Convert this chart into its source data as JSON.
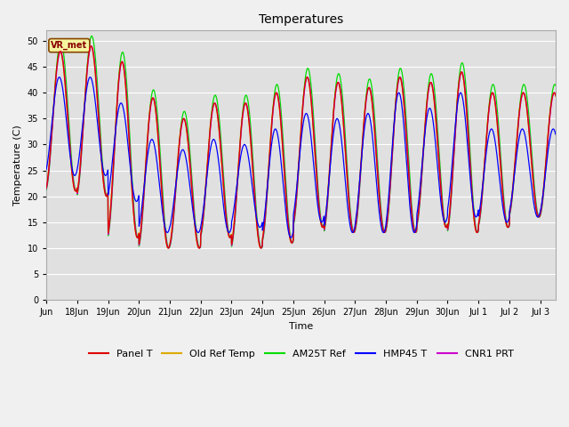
{
  "title": "Temperatures",
  "xlabel": "Time",
  "ylabel": "Temperature (C)",
  "ylim": [
    0,
    52
  ],
  "yticks": [
    0,
    5,
    10,
    15,
    20,
    25,
    30,
    35,
    40,
    45,
    50
  ],
  "series_colors": {
    "Panel T": "#dd0000",
    "Old Ref Temp": "#ddaa00",
    "AM25T Ref": "#00dd00",
    "HMP45 T": "#0000ff",
    "CNR1 PRT": "#cc00cc"
  },
  "tick_labels": [
    "Jun",
    "18Jun",
    "19Jun",
    "20Jun",
    "21Jun",
    "22Jun",
    "23Jun",
    "24Jun",
    "25Jun",
    "26Jun",
    "27Jun",
    "28Jun",
    "29Jun",
    "30Jun",
    "Jul 1",
    "Jul 2",
    "Jul 3"
  ],
  "tick_positions": [
    17,
    18,
    19,
    20,
    21,
    22,
    23,
    24,
    25,
    26,
    27,
    28,
    29,
    30,
    31,
    32,
    33
  ],
  "xlim": [
    17,
    33.5
  ],
  "annotation_text": "VR_met",
  "peak_temps": [
    48,
    49,
    46,
    39,
    35,
    38,
    38,
    40,
    43,
    42,
    41,
    43,
    42,
    44,
    40,
    40
  ],
  "trough_temps": [
    21,
    20,
    12,
    10,
    10,
    12,
    10,
    11,
    14,
    13,
    13,
    13,
    14,
    13,
    14,
    16
  ],
  "hmp45_peaks": [
    43,
    43,
    38,
    31,
    29,
    31,
    30,
    33,
    36,
    35,
    36,
    40,
    37,
    40,
    33,
    33
  ],
  "hmp45_troughs": [
    24,
    24,
    19,
    13,
    13,
    13,
    14,
    12,
    15,
    13,
    13,
    13,
    15,
    16,
    15,
    16
  ],
  "am25t_peak_scale": 1.04,
  "am25t_phase": -0.02
}
